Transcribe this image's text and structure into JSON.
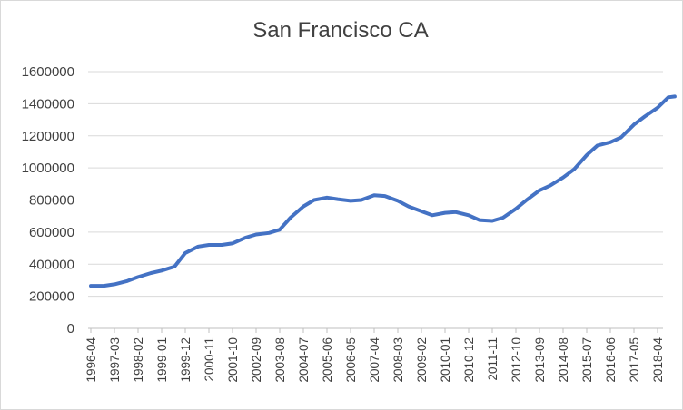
{
  "chart_data": {
    "type": "line",
    "title": "San Francisco CA",
    "xlabel": "",
    "ylabel": "",
    "ylim": [
      0,
      1600000
    ],
    "yticks": [
      "0",
      "200000",
      "400000",
      "600000",
      "800000",
      "1000000",
      "1200000",
      "1400000",
      "1600000"
    ],
    "xtick_labels": [
      "1996-04",
      "1997-03",
      "1998-02",
      "1999-01",
      "1999-12",
      "2000-11",
      "2001-10",
      "2002-09",
      "2003-08",
      "2004-07",
      "2005-06",
      "2006-05",
      "2007-04",
      "2008-03",
      "2009-02",
      "2010-01",
      "2010-12",
      "2011-11",
      "2012-10",
      "2013-09",
      "2014-08",
      "2015-07",
      "2016-06",
      "2017-05",
      "2018-04"
    ],
    "grid": true,
    "legend": "none",
    "line_color": "#4472c4",
    "series": [
      {
        "x": [
          "1996-04",
          "1996-10",
          "1997-03",
          "1997-09",
          "1998-02",
          "1998-08",
          "1999-01",
          "1999-07",
          "1999-12",
          "2000-06",
          "2000-11",
          "2001-05",
          "2001-10",
          "2002-04",
          "2002-09",
          "2003-03",
          "2003-08",
          "2004-01",
          "2004-07",
          "2004-12",
          "2005-06",
          "2005-11",
          "2006-05",
          "2006-10",
          "2007-04",
          "2007-09",
          "2008-03",
          "2008-08",
          "2009-02",
          "2009-07",
          "2010-01",
          "2010-06",
          "2010-12",
          "2011-05",
          "2011-11",
          "2012-04",
          "2012-10",
          "2013-03",
          "2013-09",
          "2014-02",
          "2014-08",
          "2015-01",
          "2015-07",
          "2015-12",
          "2016-06",
          "2016-11",
          "2017-05",
          "2017-10",
          "2018-04",
          "2018-09",
          "2018-12"
        ],
        "values": [
          265000,
          265000,
          275000,
          295000,
          320000,
          345000,
          360000,
          385000,
          470000,
          510000,
          520000,
          520000,
          530000,
          565000,
          585000,
          595000,
          615000,
          690000,
          760000,
          800000,
          815000,
          805000,
          795000,
          800000,
          830000,
          825000,
          795000,
          760000,
          730000,
          705000,
          720000,
          725000,
          705000,
          675000,
          670000,
          690000,
          745000,
          800000,
          860000,
          890000,
          940000,
          990000,
          1080000,
          1140000,
          1160000,
          1190000,
          1270000,
          1320000,
          1375000,
          1440000,
          1445000
        ]
      }
    ]
  }
}
